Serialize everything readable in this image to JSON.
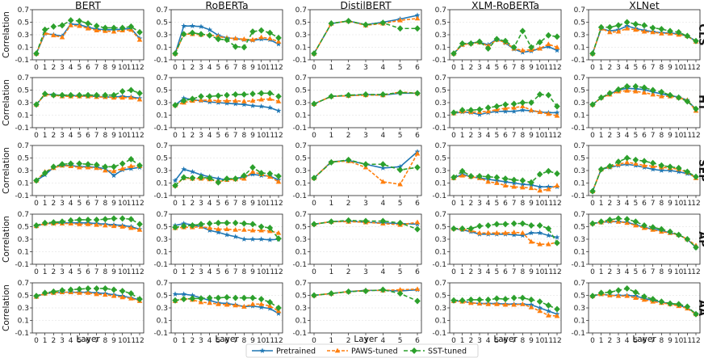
{
  "chart_data": {
    "type": "line",
    "title": "",
    "xlabel": "Layer",
    "ylabel": "Correlation",
    "ylim": [
      -0.1,
      0.7
    ],
    "yticks": [
      "-0.1",
      "0.1",
      "0.3",
      "0.5",
      "0.7"
    ],
    "models": [
      {
        "name": "BERT",
        "layers": 13
      },
      {
        "name": "RoBERTa",
        "layers": 13
      },
      {
        "name": "DistilBERT",
        "layers": 7
      },
      {
        "name": "XLM-RoBERTa",
        "layers": 13
      },
      {
        "name": "XLNet",
        "layers": 13
      }
    ],
    "rows": [
      "CLS",
      "HT",
      "SEP",
      "AP",
      "AA"
    ],
    "series_meta": [
      {
        "name": "Pretrained",
        "color": "#1f77b4",
        "marker": "star"
      },
      {
        "name": "PAWS-tuned",
        "color": "#ff7f0e",
        "marker": "triangle"
      },
      {
        "name": "SST-tuned",
        "color": "#2ca02c",
        "marker": "diamond"
      }
    ],
    "legend": {
      "placement": "bottom-center",
      "entries": [
        "Pretrained",
        "PAWS-tuned",
        "SST-tuned"
      ]
    },
    "panels": {
      "CLS": {
        "BERT": [
          [
            0.0,
            0.32,
            0.3,
            0.28,
            0.47,
            0.46,
            0.42,
            0.39,
            0.38,
            0.38,
            0.39,
            0.4,
            0.24
          ],
          [
            0.0,
            0.33,
            0.29,
            0.26,
            0.45,
            0.44,
            0.4,
            0.37,
            0.36,
            0.35,
            0.37,
            0.38,
            0.22
          ],
          [
            0.0,
            0.38,
            0.43,
            0.45,
            0.53,
            0.52,
            0.48,
            0.44,
            0.41,
            0.41,
            0.41,
            0.43,
            0.34
          ]
        ],
        "RoBERTa": [
          [
            0.0,
            0.44,
            0.44,
            0.43,
            0.38,
            0.29,
            0.25,
            0.24,
            0.22,
            0.21,
            0.23,
            0.22,
            0.15
          ],
          [
            0.0,
            0.31,
            0.31,
            0.3,
            0.3,
            0.27,
            0.25,
            0.24,
            0.23,
            0.22,
            0.26,
            0.24,
            0.19
          ],
          [
            0.0,
            0.31,
            0.33,
            0.31,
            0.29,
            0.23,
            0.22,
            0.11,
            0.1,
            0.35,
            0.37,
            0.33,
            0.25
          ]
        ],
        "DistilBERT": [
          [
            0.0,
            0.48,
            0.52,
            0.46,
            0.5,
            0.55,
            0.61
          ],
          [
            0.0,
            0.48,
            0.52,
            0.45,
            0.48,
            0.53,
            0.56
          ],
          [
            0.0,
            0.48,
            0.52,
            0.46,
            0.49,
            0.4,
            0.4
          ]
        ],
        "XLM-RoBERTa": [
          [
            0.0,
            0.14,
            0.17,
            0.18,
            0.14,
            0.23,
            0.17,
            0.07,
            0.02,
            0.04,
            0.08,
            0.11,
            0.05
          ],
          [
            0.0,
            0.14,
            0.16,
            0.18,
            0.12,
            0.22,
            0.18,
            0.08,
            0.05,
            0.06,
            0.08,
            0.15,
            0.1
          ],
          [
            0.0,
            0.16,
            0.16,
            0.19,
            0.08,
            0.23,
            0.2,
            0.1,
            0.36,
            0.1,
            0.18,
            0.29,
            0.27
          ]
        ],
        "XLNet": [
          [
            0.0,
            0.4,
            0.36,
            0.38,
            0.44,
            0.4,
            0.37,
            0.35,
            0.33,
            0.33,
            0.31,
            0.28,
            0.2
          ],
          [
            0.0,
            0.4,
            0.34,
            0.35,
            0.4,
            0.38,
            0.35,
            0.34,
            0.32,
            0.32,
            0.3,
            0.28,
            0.19
          ],
          [
            0.0,
            0.42,
            0.42,
            0.45,
            0.5,
            0.47,
            0.45,
            0.41,
            0.39,
            0.36,
            0.34,
            0.28,
            0.2
          ]
        ]
      },
      "HT": {
        "BERT": [
          [
            0.27,
            0.43,
            0.43,
            0.41,
            0.41,
            0.41,
            0.4,
            0.4,
            0.39,
            0.39,
            0.4,
            0.39,
            0.37
          ],
          [
            0.27,
            0.43,
            0.42,
            0.4,
            0.4,
            0.4,
            0.4,
            0.39,
            0.39,
            0.38,
            0.38,
            0.38,
            0.35
          ],
          [
            0.27,
            0.44,
            0.42,
            0.42,
            0.42,
            0.42,
            0.42,
            0.42,
            0.42,
            0.42,
            0.48,
            0.5,
            0.45
          ]
        ],
        "RoBERTa": [
          [
            0.26,
            0.37,
            0.35,
            0.33,
            0.31,
            0.3,
            0.29,
            0.28,
            0.27,
            0.25,
            0.24,
            0.22,
            0.17
          ],
          [
            0.26,
            0.3,
            0.33,
            0.34,
            0.34,
            0.33,
            0.33,
            0.33,
            0.32,
            0.33,
            0.35,
            0.36,
            0.32
          ],
          [
            0.26,
            0.33,
            0.36,
            0.4,
            0.4,
            0.41,
            0.42,
            0.43,
            0.43,
            0.44,
            0.45,
            0.45,
            0.4
          ]
        ],
        "DistilBERT": [
          [
            0.28,
            0.4,
            0.41,
            0.43,
            0.42,
            0.45,
            0.45
          ],
          [
            0.28,
            0.4,
            0.41,
            0.42,
            0.42,
            0.47,
            0.45
          ],
          [
            0.28,
            0.4,
            0.42,
            0.43,
            0.43,
            0.46,
            0.45
          ]
        ],
        "XLM-RoBERTa": [
          [
            0.13,
            0.15,
            0.14,
            0.11,
            0.14,
            0.16,
            0.16,
            0.16,
            0.18,
            0.17,
            0.15,
            0.14,
            0.14
          ],
          [
            0.13,
            0.16,
            0.15,
            0.15,
            0.16,
            0.19,
            0.21,
            0.22,
            0.24,
            0.18,
            0.15,
            0.12,
            0.09
          ],
          [
            0.14,
            0.18,
            0.18,
            0.19,
            0.22,
            0.24,
            0.27,
            0.28,
            0.3,
            0.3,
            0.43,
            0.42,
            0.24
          ]
        ],
        "XLNet": [
          [
            0.27,
            0.38,
            0.44,
            0.5,
            0.53,
            0.52,
            0.51,
            0.47,
            0.44,
            0.41,
            0.39,
            0.34,
            0.19
          ],
          [
            0.27,
            0.38,
            0.43,
            0.48,
            0.49,
            0.48,
            0.46,
            0.43,
            0.4,
            0.4,
            0.38,
            0.34,
            0.17
          ],
          [
            0.27,
            0.38,
            0.45,
            0.51,
            0.56,
            0.56,
            0.54,
            0.5,
            0.47,
            0.42,
            0.38,
            0.32,
            0.2
          ]
        ]
      },
      "SEP": {
        "BERT": [
          [
            0.14,
            0.23,
            0.35,
            0.38,
            0.38,
            0.36,
            0.36,
            0.35,
            0.33,
            0.22,
            0.31,
            0.33,
            0.35
          ],
          [
            0.14,
            0.28,
            0.34,
            0.38,
            0.37,
            0.35,
            0.35,
            0.34,
            0.3,
            0.29,
            0.33,
            0.37,
            0.37
          ],
          [
            0.14,
            0.26,
            0.36,
            0.4,
            0.41,
            0.41,
            0.4,
            0.39,
            0.36,
            0.36,
            0.41,
            0.48,
            0.38
          ]
        ],
        "RoBERTa": [
          [
            0.14,
            0.32,
            0.28,
            0.23,
            0.2,
            0.17,
            0.15,
            0.17,
            0.2,
            0.24,
            0.22,
            0.21,
            0.15
          ],
          [
            0.06,
            0.18,
            0.17,
            0.17,
            0.16,
            0.12,
            0.15,
            0.16,
            0.17,
            0.28,
            0.24,
            0.2,
            0.12
          ],
          [
            0.06,
            0.19,
            0.18,
            0.19,
            0.18,
            0.11,
            0.17,
            0.17,
            0.22,
            0.35,
            0.26,
            0.25,
            0.21
          ]
        ],
        "DistilBERT": [
          [
            0.18,
            0.44,
            0.46,
            0.4,
            0.34,
            0.36,
            0.6
          ],
          [
            0.18,
            0.44,
            0.45,
            0.35,
            0.12,
            0.08,
            0.57
          ],
          [
            0.18,
            0.43,
            0.47,
            0.4,
            0.4,
            0.31,
            0.35
          ]
        ],
        "XLM-RoBERTa": [
          [
            0.18,
            0.24,
            0.2,
            0.18,
            0.16,
            0.14,
            0.12,
            0.1,
            0.08,
            0.07,
            0.04,
            0.04,
            0.04
          ],
          [
            0.18,
            0.22,
            0.2,
            0.18,
            0.12,
            0.1,
            0.06,
            0.04,
            0.03,
            0.02,
            -0.02,
            0.0,
            0.06
          ],
          [
            0.19,
            0.29,
            0.21,
            0.21,
            0.2,
            0.19,
            0.17,
            0.15,
            0.14,
            0.11,
            0.24,
            0.29,
            0.25
          ]
        ],
        "XLNet": [
          [
            -0.03,
            0.32,
            0.35,
            0.38,
            0.4,
            0.38,
            0.35,
            0.32,
            0.3,
            0.3,
            0.28,
            0.25,
            0.2
          ],
          [
            -0.03,
            0.32,
            0.36,
            0.4,
            0.43,
            0.41,
            0.38,
            0.37,
            0.35,
            0.34,
            0.32,
            0.27,
            0.18
          ],
          [
            -0.03,
            0.32,
            0.37,
            0.44,
            0.5,
            0.47,
            0.45,
            0.42,
            0.38,
            0.36,
            0.34,
            0.28,
            0.2
          ]
        ]
      },
      "AP": {
        "BERT": [
          [
            0.51,
            0.55,
            0.55,
            0.56,
            0.56,
            0.56,
            0.56,
            0.55,
            0.54,
            0.53,
            0.52,
            0.5,
            0.46
          ],
          [
            0.51,
            0.55,
            0.55,
            0.55,
            0.55,
            0.54,
            0.54,
            0.53,
            0.52,
            0.51,
            0.5,
            0.48,
            0.45
          ],
          [
            0.52,
            0.56,
            0.57,
            0.58,
            0.6,
            0.61,
            0.61,
            0.61,
            0.62,
            0.63,
            0.63,
            0.62,
            0.54
          ]
        ],
        "RoBERTa": [
          [
            0.52,
            0.55,
            0.53,
            0.5,
            0.44,
            0.41,
            0.37,
            0.34,
            0.3,
            0.3,
            0.3,
            0.29,
            0.3
          ],
          [
            0.48,
            0.49,
            0.49,
            0.5,
            0.48,
            0.46,
            0.46,
            0.45,
            0.45,
            0.44,
            0.44,
            0.43,
            0.4
          ],
          [
            0.49,
            0.51,
            0.52,
            0.54,
            0.55,
            0.56,
            0.56,
            0.56,
            0.55,
            0.54,
            0.5,
            0.48,
            0.31
          ]
        ],
        "DistilBERT": [
          [
            0.54,
            0.58,
            0.59,
            0.57,
            0.56,
            0.55,
            0.54
          ],
          [
            0.54,
            0.58,
            0.58,
            0.57,
            0.55,
            0.53,
            0.57
          ],
          [
            0.54,
            0.58,
            0.6,
            0.59,
            0.59,
            0.56,
            0.46
          ]
        ],
        "XLM-RoBERTa": [
          [
            0.47,
            0.45,
            0.42,
            0.38,
            0.38,
            0.38,
            0.38,
            0.37,
            0.36,
            0.4,
            0.4,
            0.36,
            0.33
          ],
          [
            0.47,
            0.46,
            0.44,
            0.4,
            0.4,
            0.4,
            0.4,
            0.41,
            0.4,
            0.26,
            0.22,
            0.22,
            0.25
          ],
          [
            0.47,
            0.47,
            0.47,
            0.51,
            0.52,
            0.54,
            0.54,
            0.55,
            0.55,
            0.52,
            0.52,
            0.47,
            0.24
          ]
        ],
        "XLNet": [
          [
            0.55,
            0.57,
            0.58,
            0.58,
            0.57,
            0.53,
            0.49,
            0.46,
            0.44,
            0.4,
            0.37,
            0.3,
            0.17
          ],
          [
            0.55,
            0.57,
            0.59,
            0.58,
            0.56,
            0.52,
            0.48,
            0.45,
            0.42,
            0.4,
            0.37,
            0.3,
            0.2
          ],
          [
            0.55,
            0.58,
            0.61,
            0.63,
            0.62,
            0.58,
            0.52,
            0.49,
            0.46,
            0.42,
            0.37,
            0.3,
            0.17
          ]
        ]
      },
      "AA": {
        "BERT": [
          [
            0.48,
            0.53,
            0.54,
            0.55,
            0.55,
            0.55,
            0.55,
            0.54,
            0.53,
            0.51,
            0.49,
            0.46,
            0.43
          ],
          [
            0.48,
            0.53,
            0.54,
            0.55,
            0.55,
            0.54,
            0.54,
            0.52,
            0.51,
            0.49,
            0.47,
            0.45,
            0.41
          ],
          [
            0.49,
            0.54,
            0.56,
            0.58,
            0.59,
            0.6,
            0.61,
            0.61,
            0.61,
            0.59,
            0.57,
            0.53,
            0.44
          ]
        ],
        "RoBERTa": [
          [
            0.52,
            0.52,
            0.5,
            0.46,
            0.42,
            0.38,
            0.37,
            0.35,
            0.32,
            0.33,
            0.31,
            0.29,
            0.21
          ],
          [
            0.41,
            0.45,
            0.43,
            0.39,
            0.38,
            0.36,
            0.35,
            0.34,
            0.32,
            0.36,
            0.36,
            0.33,
            0.25
          ],
          [
            0.42,
            0.44,
            0.45,
            0.45,
            0.46,
            0.46,
            0.47,
            0.46,
            0.46,
            0.46,
            0.44,
            0.39,
            0.3
          ]
        ],
        "DistilBERT": [
          [
            0.5,
            0.53,
            0.56,
            0.58,
            0.58,
            0.57,
            0.59
          ],
          [
            0.5,
            0.53,
            0.56,
            0.58,
            0.58,
            0.59,
            0.6
          ],
          [
            0.5,
            0.53,
            0.56,
            0.57,
            0.59,
            0.53,
            0.41
          ]
        ],
        "XLM-RoBERTa": [
          [
            0.41,
            0.41,
            0.38,
            0.37,
            0.37,
            0.37,
            0.36,
            0.36,
            0.36,
            0.35,
            0.3,
            0.25,
            0.2
          ],
          [
            0.41,
            0.4,
            0.38,
            0.37,
            0.36,
            0.36,
            0.35,
            0.35,
            0.36,
            0.31,
            0.25,
            0.18,
            0.17
          ],
          [
            0.42,
            0.42,
            0.43,
            0.43,
            0.43,
            0.45,
            0.44,
            0.46,
            0.46,
            0.43,
            0.4,
            0.34,
            0.28
          ]
        ],
        "XLNet": [
          [
            0.49,
            0.52,
            0.5,
            0.5,
            0.5,
            0.49,
            0.45,
            0.42,
            0.39,
            0.37,
            0.34,
            0.3,
            0.21
          ],
          [
            0.49,
            0.52,
            0.5,
            0.49,
            0.49,
            0.46,
            0.43,
            0.4,
            0.38,
            0.36,
            0.33,
            0.29,
            0.2
          ],
          [
            0.49,
            0.54,
            0.55,
            0.58,
            0.61,
            0.55,
            0.48,
            0.44,
            0.4,
            0.37,
            0.36,
            0.32,
            0.2
          ]
        ]
      }
    }
  }
}
